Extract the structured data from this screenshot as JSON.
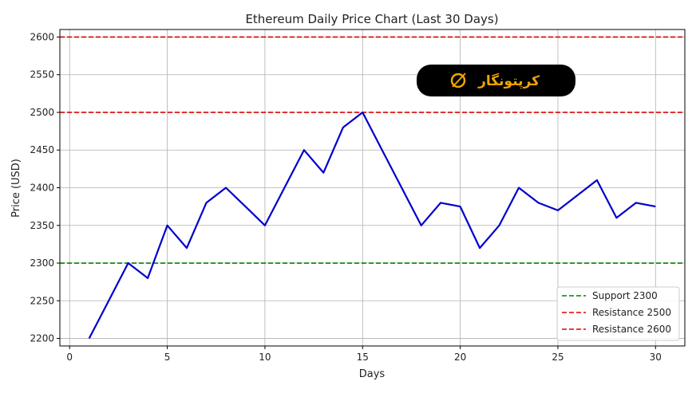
{
  "chart_data": {
    "type": "line",
    "title": "Ethereum Daily Price Chart (Last 30 Days)",
    "xlabel": "Days",
    "ylabel": "Price (USD)",
    "xlim": [
      -0.5,
      31.5
    ],
    "ylim": [
      2190,
      2610
    ],
    "xticks": [
      0,
      5,
      10,
      15,
      20,
      25,
      30
    ],
    "yticks": [
      2200,
      2250,
      2300,
      2350,
      2400,
      2450,
      2500,
      2550,
      2600
    ],
    "grid": true,
    "legend_position": "lower-right",
    "series": [
      {
        "color": "#0000cc",
        "x": [
          1,
          2,
          3,
          4,
          5,
          6,
          7,
          8,
          9,
          10,
          11,
          12,
          13,
          14,
          15,
          16,
          17,
          18,
          19,
          20,
          21,
          22,
          23,
          24,
          25,
          26,
          27,
          28,
          29,
          30
        ],
        "y": [
          2200,
          2250,
          2300,
          2280,
          2350,
          2320,
          2380,
          2400,
          2375,
          2350,
          2400,
          2450,
          2420,
          2480,
          2500,
          2450,
          2400,
          2350,
          2380,
          2375,
          2320,
          2350,
          2400,
          2380,
          2370,
          2390,
          2410,
          2360,
          2380,
          2375
        ]
      }
    ],
    "reference_lines": [
      {
        "name": "Support 2300",
        "value": 2300,
        "color": "#008000",
        "style": "dashed"
      },
      {
        "name": "Resistance 2500",
        "value": 2500,
        "color": "#dd0000",
        "style": "dashed"
      },
      {
        "name": "Resistance 2600",
        "value": 2600,
        "color": "#dd0000",
        "style": "dashed"
      }
    ]
  },
  "watermark": {
    "text": "کرپتونگار",
    "icon": "crypto-coin-icon",
    "background": "#000000",
    "color": "#f0a500"
  }
}
